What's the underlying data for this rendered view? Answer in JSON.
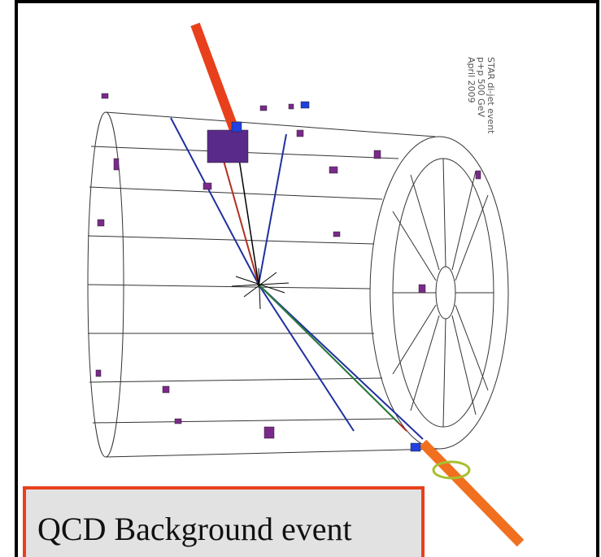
{
  "annotation": {
    "lines": [
      "STAR di-jet event",
      "p+p 500 GeV",
      "April 2009"
    ]
  },
  "caption": "QCD Background event"
}
